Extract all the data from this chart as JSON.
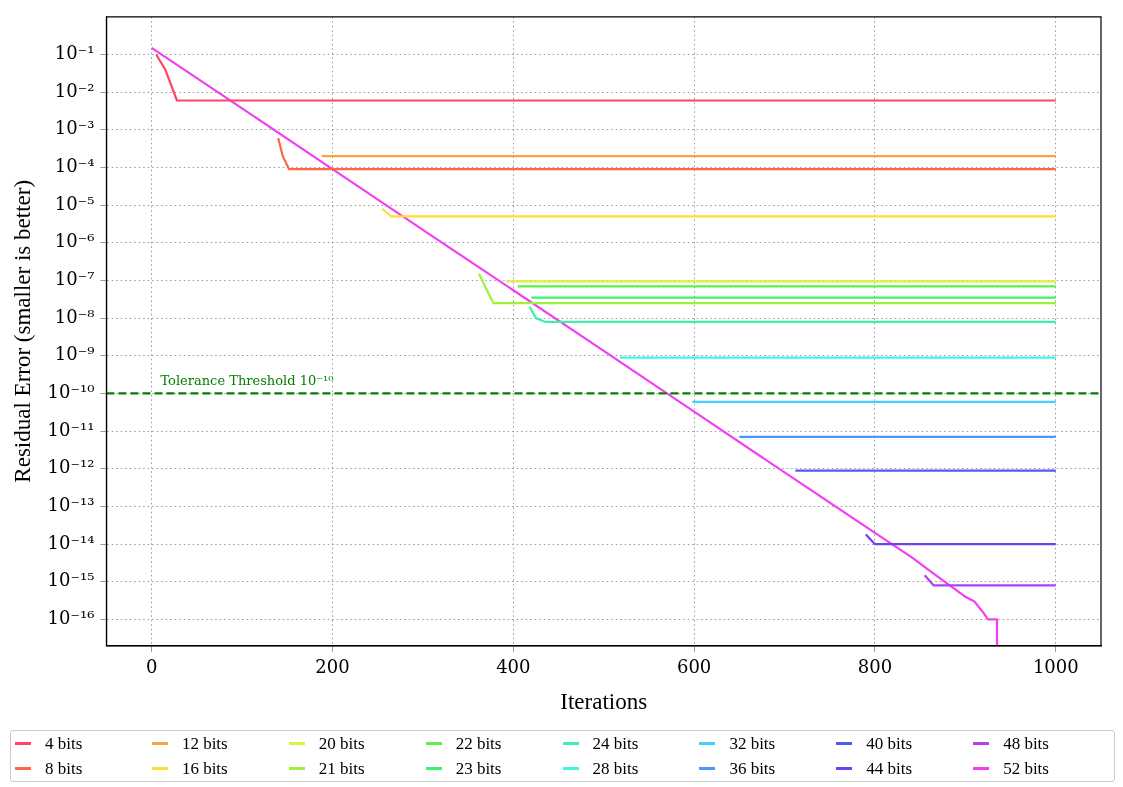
{
  "chart_data": {
    "type": "line",
    "xlabel": "Iterations",
    "ylabel": "Residual Error (smaller is better)",
    "log": "y",
    "grid": true,
    "legend": "bottom",
    "marker": "none",
    "line_style": "solid",
    "xlim": [
      -50,
      1050
    ],
    "xticks": [
      0,
      200,
      400,
      600,
      800,
      1000
    ],
    "ylim": [
      2e-17,
      1
    ],
    "yticks": [
      {
        "value": 0.1,
        "label": "10⁻¹"
      },
      {
        "value": 0.01,
        "label": "10⁻²"
      },
      {
        "value": 0.001,
        "label": "10⁻³"
      },
      {
        "value": 0.0001,
        "label": "10⁻⁴"
      },
      {
        "value": 1e-05,
        "label": "10⁻⁵"
      },
      {
        "value": 1e-06,
        "label": "10⁻⁶"
      },
      {
        "value": 1e-07,
        "label": "10⁻⁷"
      },
      {
        "value": 1e-08,
        "label": "10⁻⁸"
      },
      {
        "value": 1e-09,
        "label": "10⁻⁹"
      },
      {
        "value": 1e-10,
        "label": "10⁻¹⁰"
      },
      {
        "value": 1e-11,
        "label": "10⁻¹¹"
      },
      {
        "value": 1e-12,
        "label": "10⁻¹²"
      },
      {
        "value": 1e-13,
        "label": "10⁻¹³"
      },
      {
        "value": 1e-14,
        "label": "10⁻¹⁴"
      },
      {
        "value": 1e-15,
        "label": "10⁻¹⁵"
      },
      {
        "value": 1e-16,
        "label": "10⁻¹⁶"
      }
    ],
    "ref_lines": [
      {
        "axis": "y",
        "value": 1e-10,
        "label": "Tolerance Threshold 10⁻¹⁰",
        "color": "#008000",
        "line_style": "dashed"
      }
    ],
    "series": [
      {
        "name": "4 bits",
        "color": "#ff4466",
        "x": [
          5,
          15,
          28,
          1000
        ],
        "values": [
          0.1,
          0.04,
          0.006,
          0.006
        ]
      },
      {
        "name": "8 bits",
        "color": "#ff6645",
        "x": [
          140,
          145,
          152,
          1000
        ],
        "values": [
          0.0006,
          0.0002,
          9e-05,
          9e-05
        ]
      },
      {
        "name": "12 bits",
        "color": "#ffa040",
        "x": [
          188,
          1000
        ],
        "values": [
          0.0002,
          0.0002
        ]
      },
      {
        "name": "16 bits",
        "color": "#ffdd33",
        "x": [
          255,
          265,
          1000
        ],
        "values": [
          8e-06,
          5e-06,
          5e-06
        ]
      },
      {
        "name": "20 bits",
        "color": "#e0f040",
        "x": [
          392,
          1000
        ],
        "values": [
          9.5e-08,
          9.5e-08
        ]
      },
      {
        "name": "21 bits",
        "color": "#a0f040",
        "x": [
          362,
          370,
          378,
          1000
        ],
        "values": [
          1.5e-07,
          6e-08,
          2.5e-08,
          2.5e-08
        ]
      },
      {
        "name": "22 bits",
        "color": "#5ef048",
        "x": [
          405,
          1000
        ],
        "values": [
          7e-08,
          7e-08
        ]
      },
      {
        "name": "23 bits",
        "color": "#40f070",
        "x": [
          420,
          1000
        ],
        "values": [
          3.5e-08,
          3.5e-08
        ]
      },
      {
        "name": "24 bits",
        "color": "#40f0a8",
        "x": [
          418,
          425,
          435,
          1000
        ],
        "values": [
          2e-08,
          1e-08,
          8e-09,
          8e-09
        ]
      },
      {
        "name": "28 bits",
        "color": "#40f5e5",
        "x": [
          518,
          1000
        ],
        "values": [
          9e-10,
          9e-10
        ]
      },
      {
        "name": "32 bits",
        "color": "#40d0ff",
        "x": [
          598,
          1000
        ],
        "values": [
          6e-11,
          6e-11
        ]
      },
      {
        "name": "36 bits",
        "color": "#4a98ff",
        "x": [
          650,
          1000
        ],
        "values": [
          7e-12,
          7e-12
        ]
      },
      {
        "name": "40 bits",
        "color": "#4c5cf5",
        "x": [
          712,
          1000
        ],
        "values": [
          9e-13,
          9e-13
        ]
      },
      {
        "name": "44 bits",
        "color": "#7040f5",
        "x": [
          790,
          800,
          1000
        ],
        "values": [
          1.8e-14,
          1e-14,
          1e-14
        ]
      },
      {
        "name": "48 bits",
        "color": "#b040f0",
        "x": [
          855,
          865,
          1000
        ],
        "values": [
          1.5e-15,
          8e-16,
          8e-16
        ]
      },
      {
        "name": "52 bits",
        "color": "#f040f0",
        "x": [
          0,
          100,
          200,
          300,
          400,
          500,
          600,
          700,
          800,
          840,
          860,
          880,
          890,
          900,
          910,
          920,
          925,
          935,
          935
        ],
        "values": [
          0.15,
          0.0037,
          9e-05,
          2.2e-06,
          5.5e-08,
          1.35e-09,
          3.3e-11,
          8e-13,
          2e-14,
          4.6e-15,
          2e-15,
          9e-16,
          6e-16,
          4e-16,
          3e-16,
          1.5e-16,
          1e-16,
          1e-16,
          2e-17
        ]
      }
    ]
  }
}
